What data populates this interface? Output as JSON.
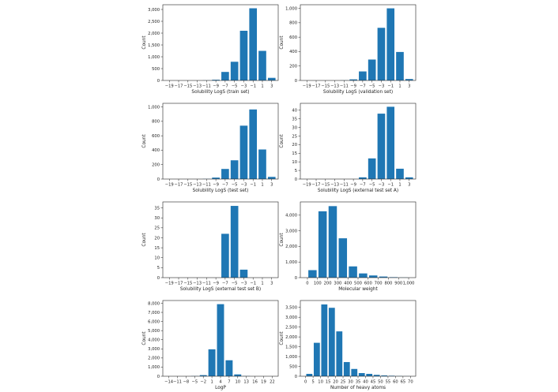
{
  "chart_data": [
    {
      "type": "bar",
      "xlabel": "Solubility LogS (train set)",
      "ylabel": "Count",
      "bin_centers": [
        -19,
        -17,
        -15,
        -13,
        -11,
        -9,
        -7,
        -5,
        -3,
        -1,
        1,
        3
      ],
      "values": [
        0,
        0,
        0,
        0,
        5,
        30,
        360,
        790,
        2100,
        3050,
        1250,
        110
      ],
      "x_ticks": [
        -19,
        -17,
        -15,
        -13,
        -11,
        -9,
        -7,
        -5,
        -3,
        -1,
        1,
        3
      ],
      "x_tick_labels": [
        "−19",
        "−17",
        "−15",
        "−13",
        "−11",
        "−9",
        "−7",
        "−5",
        "−3",
        "−1",
        "1",
        "3"
      ],
      "y_ticks": [
        0,
        500,
        1000,
        1500,
        2000,
        2500,
        3000
      ],
      "y_tick_labels": [
        "0",
        "500",
        "1,000",
        "1,500",
        "2,000",
        "2,500",
        "3,000"
      ],
      "ylim": [
        0,
        3200
      ]
    },
    {
      "type": "bar",
      "xlabel": "Solubility LogS (validation set)",
      "ylabel": "Count",
      "bin_centers": [
        -19,
        -17,
        -15,
        -13,
        -11,
        -9,
        -7,
        -5,
        -3,
        -1,
        1,
        3
      ],
      "values": [
        0,
        0,
        0,
        0,
        2,
        15,
        125,
        290,
        730,
        1000,
        395,
        20
      ],
      "x_ticks": [
        -19,
        -17,
        -15,
        -13,
        -11,
        -9,
        -7,
        -5,
        -3,
        -1,
        1,
        3
      ],
      "x_tick_labels": [
        "−19",
        "−17",
        "−15",
        "−13",
        "−11",
        "−9",
        "−7",
        "−5",
        "−3",
        "−1",
        "1",
        "3"
      ],
      "y_ticks": [
        0,
        200,
        400,
        600,
        800,
        1000
      ],
      "y_tick_labels": [
        "0",
        "200",
        "400",
        "600",
        "800",
        "1,000"
      ],
      "ylim": [
        0,
        1050
      ]
    },
    {
      "type": "bar",
      "xlabel": "Solubility LogS (test set)",
      "ylabel": "Count",
      "bin_centers": [
        -19,
        -17,
        -15,
        -13,
        -11,
        -9,
        -7,
        -5,
        -3,
        -1,
        1,
        3
      ],
      "values": [
        0,
        0,
        0,
        0,
        2,
        20,
        140,
        260,
        740,
        965,
        410,
        30
      ],
      "x_ticks": [
        -19,
        -17,
        -15,
        -13,
        -11,
        -9,
        -7,
        -5,
        -3,
        -1,
        1,
        3
      ],
      "x_tick_labels": [
        "−19",
        "−17",
        "−15",
        "−13",
        "−11",
        "−9",
        "−7",
        "−5",
        "−3",
        "−1",
        "1",
        "3"
      ],
      "y_ticks": [
        0,
        200,
        400,
        600,
        800,
        1000
      ],
      "y_tick_labels": [
        "0",
        "200",
        "400",
        "600",
        "800",
        "1,000"
      ],
      "ylim": [
        0,
        1050
      ]
    },
    {
      "type": "bar",
      "xlabel": "Solubility LogS (external test set A)",
      "ylabel": "Count",
      "bin_centers": [
        -19,
        -17,
        -15,
        -13,
        -11,
        -9,
        -7,
        -5,
        -3,
        -1,
        1,
        3
      ],
      "values": [
        0,
        0,
        0,
        0,
        0,
        0,
        1,
        12,
        38,
        42,
        6,
        1
      ],
      "x_ticks": [
        -19,
        -17,
        -15,
        -13,
        -11,
        -9,
        -7,
        -5,
        -3,
        -1,
        1,
        3
      ],
      "x_tick_labels": [
        "−19",
        "−17",
        "−15",
        "−13",
        "−11",
        "−9",
        "−7",
        "−5",
        "−3",
        "−1",
        "1",
        "3"
      ],
      "y_ticks": [
        0,
        5,
        10,
        15,
        20,
        25,
        30,
        35,
        40
      ],
      "y_tick_labels": [
        "0",
        "5",
        "10",
        "15",
        "20",
        "25",
        "30",
        "35",
        "40"
      ],
      "ylim": [
        0,
        44
      ]
    },
    {
      "type": "bar",
      "xlabel": "Solubility LogS (external test set B)",
      "ylabel": "Count",
      "bin_centers": [
        -19,
        -17,
        -15,
        -13,
        -11,
        -9,
        -7,
        -5,
        -3,
        -1,
        1,
        3
      ],
      "values": [
        0,
        0,
        0,
        0,
        0,
        0,
        22,
        36,
        4,
        0,
        0,
        0
      ],
      "x_ticks": [
        -19,
        -17,
        -15,
        -13,
        -11,
        -9,
        -7,
        -5,
        -3,
        -1,
        1,
        3
      ],
      "x_tick_labels": [
        "−19",
        "−17",
        "−15",
        "−13",
        "−11",
        "−9",
        "−7",
        "−5",
        "−3",
        "−1",
        "1",
        "3"
      ],
      "y_ticks": [
        0,
        5,
        10,
        15,
        20,
        25,
        30,
        35
      ],
      "y_tick_labels": [
        "0",
        "5",
        "10",
        "15",
        "20",
        "25",
        "30",
        "35"
      ],
      "ylim": [
        0,
        38
      ]
    },
    {
      "type": "bar",
      "xlabel": "Molecular weight",
      "ylabel": "Count",
      "bin_centers": [
        50,
        150,
        250,
        350,
        450,
        550,
        650,
        750,
        850,
        950
      ],
      "values": [
        480,
        4250,
        4580,
        2520,
        720,
        270,
        140,
        70,
        30,
        10
      ],
      "x_ticks": [
        0,
        100,
        200,
        300,
        400,
        500,
        600,
        700,
        800,
        900,
        1000
      ],
      "x_tick_labels": [
        "0",
        "100",
        "200",
        "300",
        "400",
        "500",
        "600",
        "700",
        "800",
        "900",
        "1,000"
      ],
      "y_ticks": [
        0,
        1000,
        2000,
        3000,
        4000
      ],
      "y_tick_labels": [
        "0",
        "1,000",
        "2,000",
        "3,000",
        "4,000"
      ],
      "ylim": [
        0,
        4850
      ]
    },
    {
      "type": "bar",
      "xlabel": "LogP",
      "ylabel": "Count",
      "bin_centers": [
        -14,
        -11,
        -8,
        -5,
        -2,
        1,
        4,
        7,
        10,
        13,
        16,
        19,
        22
      ],
      "values": [
        0,
        0,
        0,
        20,
        120,
        2950,
        7900,
        1750,
        200,
        20,
        0,
        0,
        0
      ],
      "x_ticks": [
        -14,
        -11,
        -8,
        -5,
        -2,
        1,
        4,
        7,
        10,
        13,
        16,
        19,
        22
      ],
      "x_tick_labels": [
        "−14",
        "−11",
        "−8",
        "−5",
        "−2",
        "1",
        "4",
        "7",
        "10",
        "13",
        "16",
        "19",
        "22"
      ],
      "y_ticks": [
        0,
        1000,
        2000,
        3000,
        4000,
        5000,
        6000,
        7000,
        8000
      ],
      "y_tick_labels": [
        "0",
        "1,000",
        "2,000",
        "3,000",
        "4,000",
        "5,000",
        "6,000",
        "7,000",
        "8,000"
      ],
      "ylim": [
        0,
        8300
      ]
    },
    {
      "type": "bar",
      "xlabel": "Number of heavy atoms",
      "ylabel": "Count",
      "bin_centers": [
        2.5,
        7.5,
        12.5,
        17.5,
        22.5,
        27.5,
        32.5,
        37.5,
        42.5,
        47.5,
        52.5,
        57.5,
        62.5,
        67.5
      ],
      "values": [
        120,
        1700,
        3650,
        3480,
        2280,
        720,
        370,
        160,
        120,
        70,
        40,
        25,
        10,
        5
      ],
      "x_ticks": [
        0,
        5,
        10,
        15,
        20,
        25,
        30,
        35,
        40,
        45,
        50,
        55,
        60,
        65,
        70
      ],
      "x_tick_labels": [
        "0",
        "5",
        "10",
        "15",
        "20",
        "25",
        "30",
        "35",
        "40",
        "45",
        "50",
        "55",
        "60",
        "65",
        "70"
      ],
      "y_ticks": [
        0,
        500,
        1000,
        1500,
        2000,
        2500,
        3000,
        3500
      ],
      "y_tick_labels": [
        "0",
        "500",
        "1,000",
        "1,500",
        "2,000",
        "2,500",
        "3,000",
        "3,500"
      ],
      "ylim": [
        0,
        3850
      ]
    }
  ],
  "colors": {
    "bar": "#1f77b4",
    "axis": "#222222",
    "background": "#ffffff"
  }
}
